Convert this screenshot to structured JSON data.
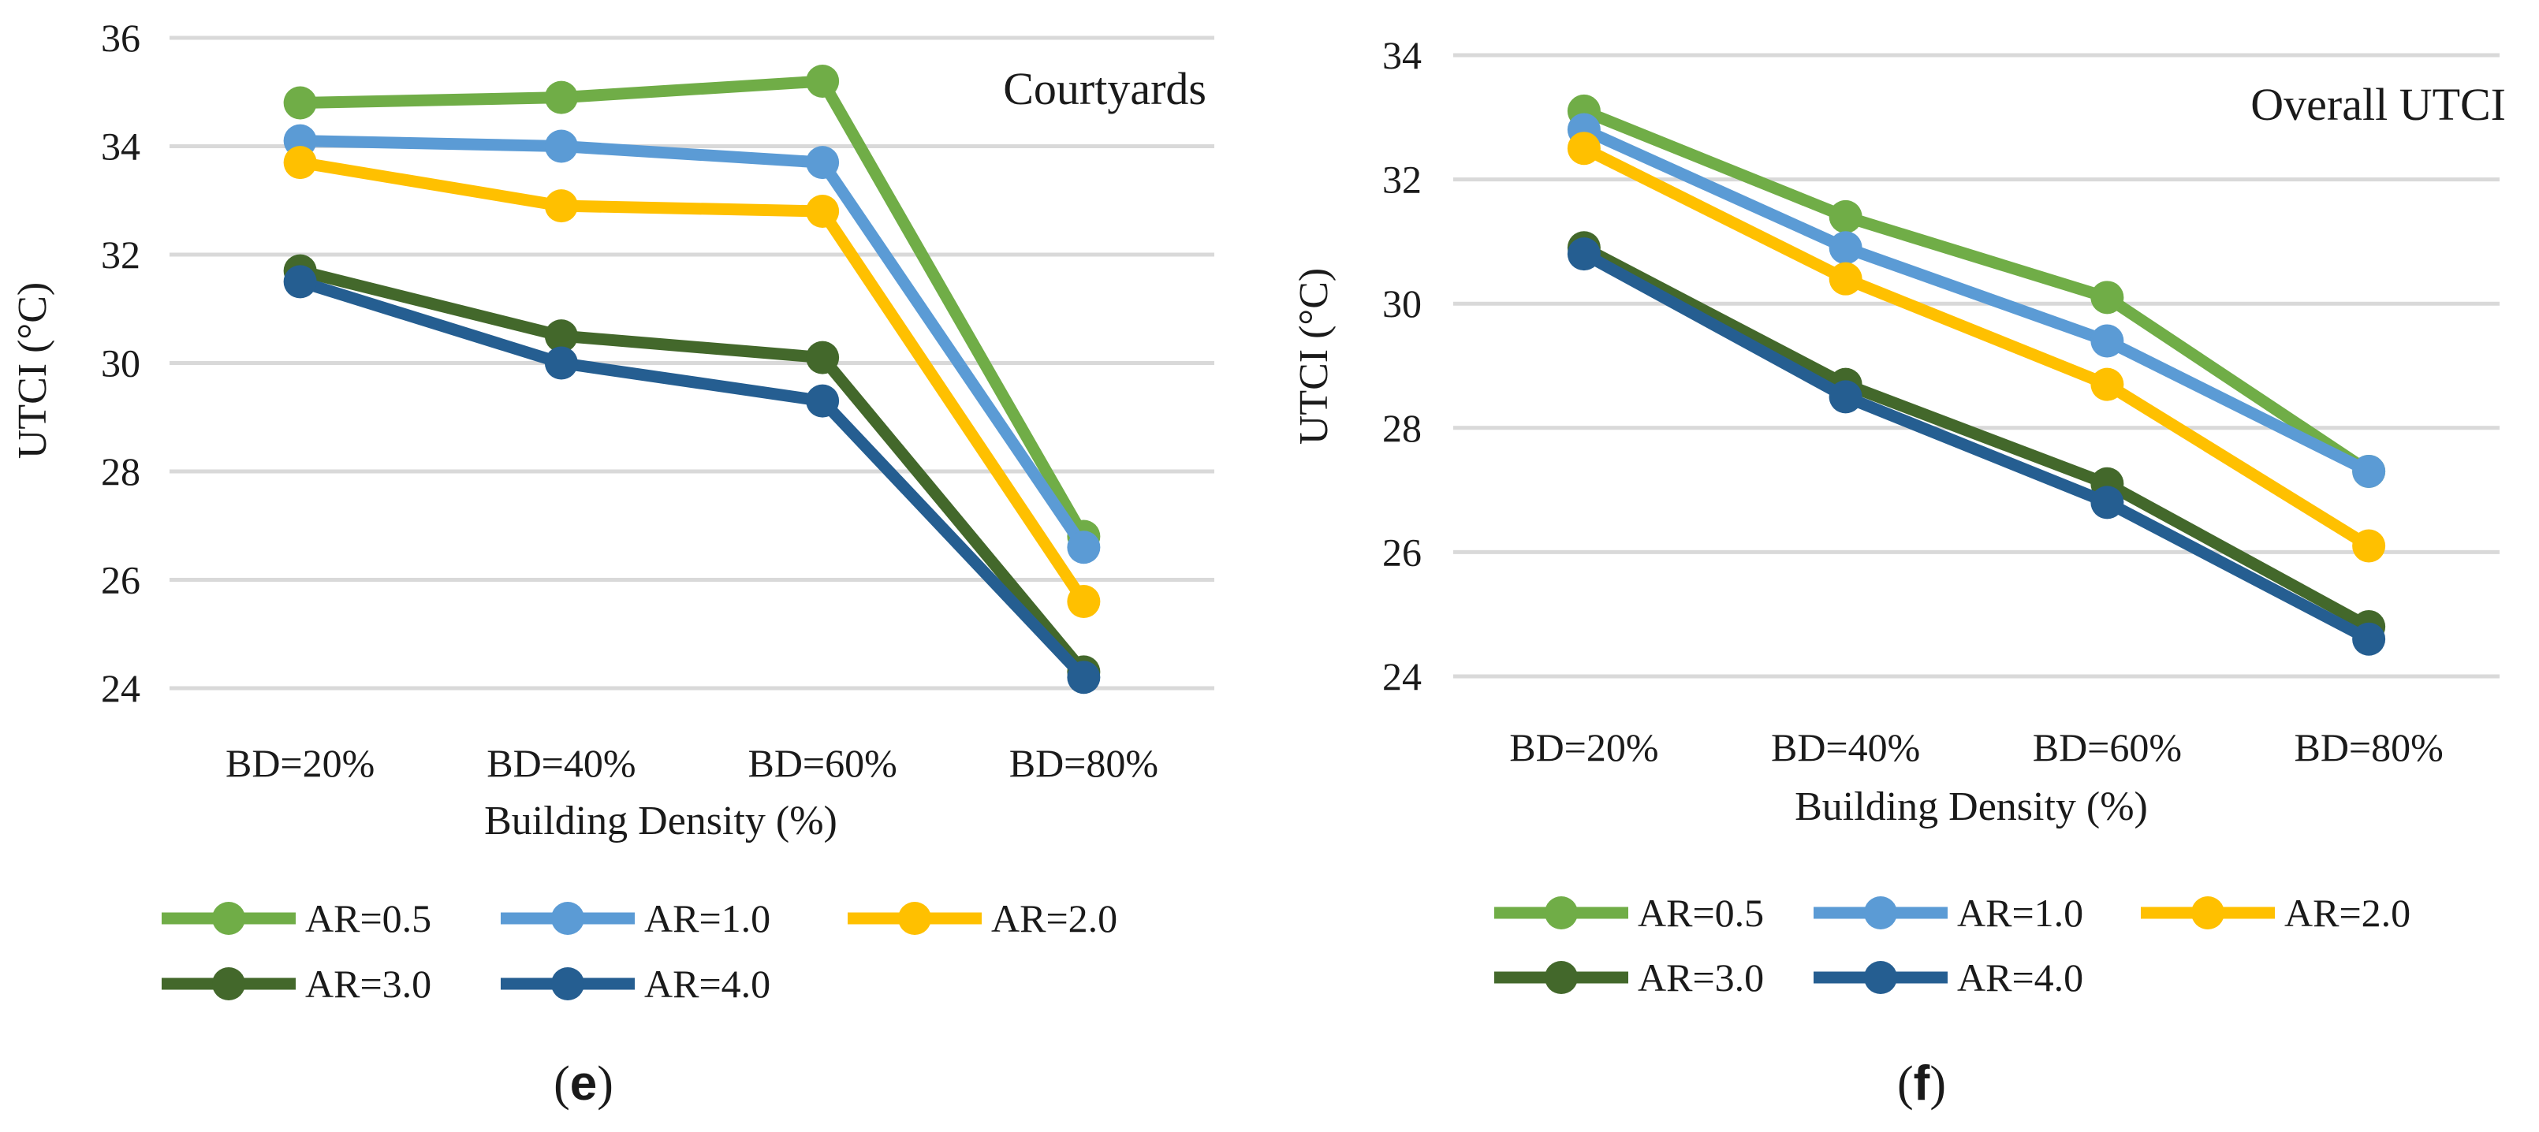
{
  "chart_data": [
    {
      "type": "line",
      "title": "Courtyards",
      "panel_label": "e",
      "xlabel": "Building Density (%)",
      "ylabel": "UTCI (°C)",
      "categories": [
        "BD=20%",
        "BD=40%",
        "BD=60%",
        "BD=80%"
      ],
      "ylim": [
        24,
        36
      ],
      "yticks": [
        "24",
        "26",
        "28",
        "30",
        "32",
        "34",
        "36"
      ],
      "grid": true,
      "legend_position": "bottom",
      "series": [
        {
          "name": "AR=0.5",
          "color": "#70ad47",
          "values": [
            34.8,
            34.9,
            35.2,
            26.8
          ]
        },
        {
          "name": "AR=1.0",
          "color": "#5b9bd5",
          "values": [
            34.1,
            34.0,
            33.7,
            26.6
          ]
        },
        {
          "name": "AR=2.0",
          "color": "#ffc000",
          "values": [
            33.7,
            32.9,
            32.8,
            25.6
          ]
        },
        {
          "name": "AR=3.0",
          "color": "#43682b",
          "values": [
            31.7,
            30.5,
            30.1,
            24.3
          ]
        },
        {
          "name": "AR=4.0",
          "color": "#255e91",
          "values": [
            31.5,
            30.0,
            29.3,
            24.2
          ]
        }
      ]
    },
    {
      "type": "line",
      "title": "Overall UTCI",
      "panel_label": "f",
      "xlabel": "Building Density (%)",
      "ylabel": "UTCI (°C)",
      "categories": [
        "BD=20%",
        "BD=40%",
        "BD=60%",
        "BD=80%"
      ],
      "ylim": [
        24,
        34
      ],
      "yticks": [
        "24",
        "26",
        "28",
        "30",
        "32",
        "34"
      ],
      "grid": true,
      "legend_position": "bottom",
      "series": [
        {
          "name": "AR=0.5",
          "color": "#70ad47",
          "values": [
            33.1,
            31.4,
            30.1,
            27.3
          ]
        },
        {
          "name": "AR=1.0",
          "color": "#5b9bd5",
          "values": [
            32.8,
            30.9,
            29.4,
            27.3
          ]
        },
        {
          "name": "AR=2.0",
          "color": "#ffc000",
          "values": [
            32.5,
            30.4,
            28.7,
            26.1
          ]
        },
        {
          "name": "AR=3.0",
          "color": "#43682b",
          "values": [
            30.9,
            28.7,
            27.1,
            24.8
          ]
        },
        {
          "name": "AR=4.0",
          "color": "#255e91",
          "values": [
            30.8,
            28.5,
            26.8,
            24.6
          ]
        }
      ]
    }
  ]
}
